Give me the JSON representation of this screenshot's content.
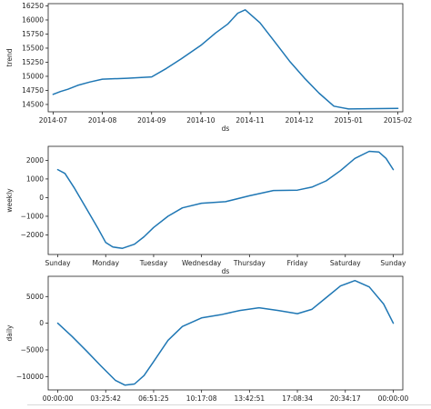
{
  "line_color": "#1f77b4",
  "chart_data": [
    {
      "type": "line",
      "xlabel": "ds",
      "ylabel": "trend",
      "x_tick_labels": [
        "2014-07",
        "2014-08",
        "2014-09",
        "2014-10",
        "2014-11",
        "2014-12",
        "2015-01",
        "2015-02"
      ],
      "y_tick_values": [
        14500,
        14750,
        15000,
        15250,
        15500,
        15750,
        16000,
        16250
      ],
      "y_tick_labels": [
        "14500",
        "14750",
        "15000",
        "15250",
        "15500",
        "15750",
        "16000",
        "16250"
      ],
      "xlim": [
        -0.1,
        7.1
      ],
      "ylim": [
        14370,
        16290
      ],
      "x": [
        0,
        0.15,
        0.3,
        0.5,
        0.75,
        1.0,
        1.5,
        2.0,
        2.3,
        2.6,
        3.0,
        3.3,
        3.55,
        3.75,
        3.9,
        4.2,
        4.5,
        4.8,
        5.1,
        5.4,
        5.7,
        6.0,
        7.0
      ],
      "y": [
        14680,
        14730,
        14770,
        14840,
        14900,
        14950,
        14965,
        14990,
        15140,
        15310,
        15550,
        15770,
        15930,
        16120,
        16180,
        15950,
        15610,
        15270,
        14970,
        14700,
        14470,
        14420,
        14430
      ]
    },
    {
      "type": "line",
      "xlabel": "ds",
      "ylabel": "weekly",
      "x_tick_labels": [
        "Sunday",
        "Monday",
        "Tuesday",
        "Wednesday",
        "Thursday",
        "Friday",
        "Saturday",
        "Sunday"
      ],
      "y_tick_values": [
        -2000,
        -1000,
        0,
        1000,
        2000
      ],
      "y_tick_labels": [
        "−2000",
        "−1000",
        "0",
        "1000",
        "2000"
      ],
      "xlim": [
        -0.2,
        7.2
      ],
      "ylim": [
        -3050,
        2750
      ],
      "x": [
        0,
        0.15,
        0.35,
        0.6,
        0.85,
        1.0,
        1.15,
        1.35,
        1.6,
        1.8,
        2.0,
        2.3,
        2.6,
        3.0,
        3.5,
        4.0,
        4.5,
        5.0,
        5.3,
        5.6,
        5.9,
        6.2,
        6.5,
        6.7,
        6.85,
        7.0
      ],
      "y": [
        1500,
        1300,
        500,
        -600,
        -1700,
        -2400,
        -2650,
        -2720,
        -2500,
        -2100,
        -1600,
        -1000,
        -550,
        -300,
        -220,
        100,
        380,
        400,
        560,
        900,
        1450,
        2100,
        2480,
        2450,
        2100,
        1500
      ]
    },
    {
      "type": "line",
      "xlabel": "",
      "ylabel": "daily",
      "x_tick_labels": [
        "00:00:00",
        "03:25:42",
        "06:51:25",
        "10:17:08",
        "13:42:51",
        "17:08:34",
        "20:34:17",
        "00:00:00"
      ],
      "y_tick_values": [
        -10000,
        -5000,
        0,
        5000
      ],
      "y_tick_labels": [
        "−10000",
        "−5000",
        "0",
        "5000"
      ],
      "xlim": [
        -0.2,
        7.2
      ],
      "ylim": [
        -12500,
        8800
      ],
      "x": [
        0,
        0.3,
        0.6,
        0.9,
        1.2,
        1.4,
        1.6,
        1.8,
        2.0,
        2.3,
        2.6,
        3.0,
        3.4,
        3.8,
        4.2,
        4.6,
        5.0,
        5.3,
        5.6,
        5.9,
        6.2,
        6.5,
        6.8,
        7.0
      ],
      "y": [
        0,
        -2500,
        -5200,
        -8000,
        -10700,
        -11600,
        -11400,
        -9800,
        -7200,
        -3200,
        -600,
        1000,
        1600,
        2400,
        2900,
        2400,
        1800,
        2600,
        4800,
        7000,
        8000,
        6800,
        3600,
        0
      ]
    }
  ]
}
